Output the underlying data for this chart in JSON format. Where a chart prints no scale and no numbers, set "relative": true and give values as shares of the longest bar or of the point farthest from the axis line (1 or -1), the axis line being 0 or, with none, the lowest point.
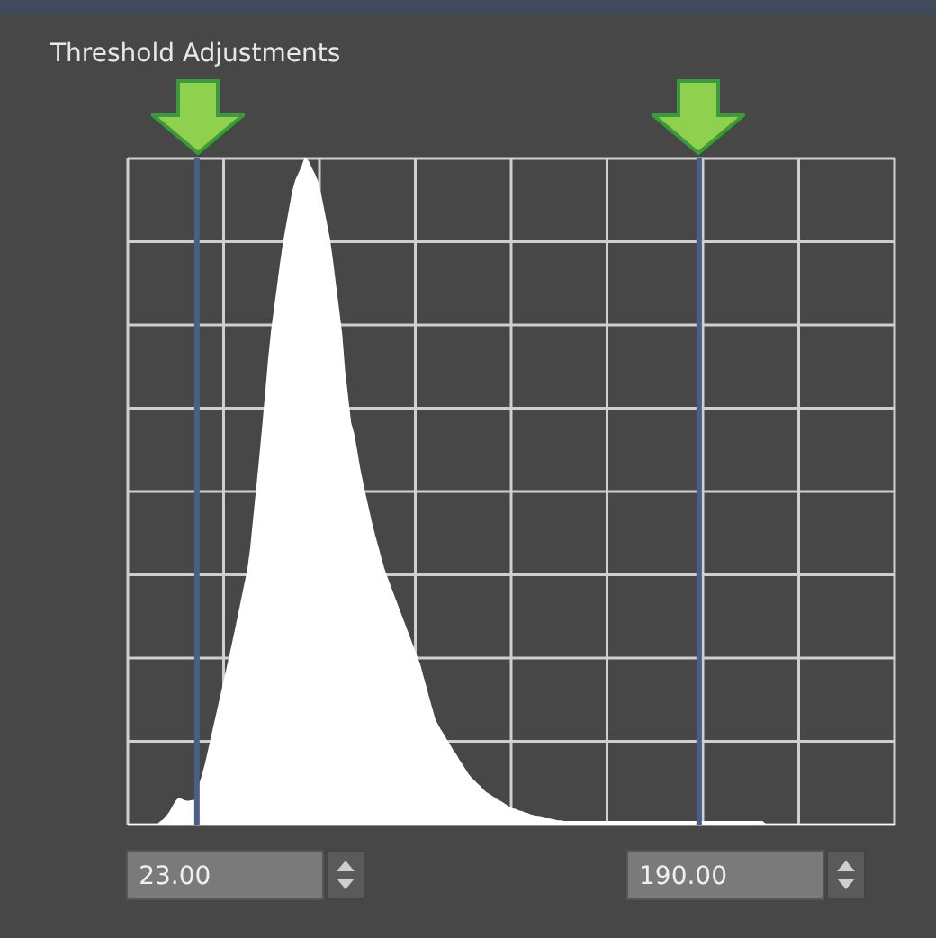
{
  "chart_data": {
    "type": "area",
    "title": "Threshold Adjustments",
    "relative": true,
    "grid": true,
    "categories": [
      null,
      null,
      null,
      null,
      null,
      null,
      null,
      null,
      null,
      null,
      null,
      null,
      null,
      null,
      null,
      null,
      null,
      null,
      null,
      null,
      null,
      null,
      null,
      null,
      null,
      null,
      null,
      null,
      null,
      null,
      null,
      null,
      null,
      null,
      null,
      null,
      null,
      null,
      null,
      null,
      null,
      null,
      null,
      null,
      null,
      null,
      null,
      null,
      null,
      null,
      null,
      null,
      null,
      null,
      null,
      null,
      null,
      null,
      null,
      null,
      null,
      null,
      null,
      null,
      null,
      null,
      null,
      null,
      null,
      null,
      null,
      null,
      null,
      null,
      null,
      null,
      null,
      null,
      null,
      null,
      null,
      null,
      null,
      null,
      null,
      null,
      null,
      null,
      null,
      null,
      null,
      null,
      null,
      null,
      null,
      null,
      null,
      null,
      null,
      null,
      null,
      null,
      null,
      null,
      null,
      null,
      null,
      null,
      null,
      null,
      null,
      null,
      null,
      null,
      null,
      null,
      null,
      null,
      null,
      null,
      null,
      null,
      null,
      null,
      null,
      null,
      null,
      null,
      null,
      null,
      null,
      null,
      null,
      null,
      null,
      null,
      null,
      null,
      null,
      null,
      null,
      null,
      null,
      null,
      null,
      null,
      null,
      null,
      null,
      null,
      null,
      null,
      null,
      null,
      null,
      null,
      null,
      null,
      null,
      null,
      null,
      null,
      null,
      null,
      null,
      null,
      null,
      null,
      null,
      null,
      null,
      null,
      null,
      null,
      null,
      null,
      null,
      null,
      null,
      null,
      null,
      null,
      null,
      null,
      null,
      null,
      null,
      null,
      null,
      null,
      null,
      null,
      null,
      null,
      null,
      null,
      null,
      null,
      null,
      null,
      null,
      null,
      null,
      null,
      null,
      null,
      null,
      null,
      null,
      null,
      null,
      null,
      null,
      null,
      null,
      null,
      null,
      null,
      null,
      null,
      null,
      null,
      null,
      null,
      null,
      null,
      null,
      null,
      null,
      null,
      null,
      null,
      null,
      null,
      null,
      null,
      null,
      null,
      null,
      null,
      null,
      null,
      null,
      null,
      null,
      null,
      null,
      null,
      null,
      null,
      null,
      null,
      null,
      null,
      null,
      null
    ],
    "series": [
      {
        "color": "#ffffff",
        "values": [
          0,
          0,
          0,
          0,
          0,
          0,
          0,
          0,
          0,
          0,
          0,
          0.004,
          0.007,
          0.012,
          0.018,
          0.026,
          0.034,
          0.039,
          0.037,
          0.035,
          0.034,
          0.035,
          0.036,
          0.037,
          0.06,
          0.075,
          0.092,
          0.112,
          0.132,
          0.152,
          0.172,
          0.192,
          0.212,
          0.232,
          0.252,
          0.273,
          0.294,
          0.316,
          0.338,
          0.36,
          0.381,
          0.415,
          0.46,
          0.505,
          0.55,
          0.598,
          0.649,
          0.7,
          0.743,
          0.777,
          0.811,
          0.845,
          0.876,
          0.901,
          0.926,
          0.951,
          0.967,
          0.977,
          0.987,
          1,
          0.995,
          0.985,
          0.976,
          0.965,
          0.947,
          0.924,
          0.901,
          0.878,
          0.845,
          0.809,
          0.773,
          0.737,
          0.681,
          0.642,
          0.603,
          0.587,
          0.562,
          0.535,
          0.513,
          0.492,
          0.472,
          0.452,
          0.434,
          0.418,
          0.401,
          0.385,
          0.372,
          0.36,
          0.348,
          0.336,
          0.324,
          0.312,
          0.3,
          0.288,
          0.276,
          0.264,
          0.252,
          0.24,
          0.223,
          0.207,
          0.19,
          0.174,
          0.158,
          0.149,
          0.141,
          0.134,
          0.126,
          0.119,
          0.111,
          0.105,
          0.097,
          0.09,
          0.083,
          0.076,
          0.07,
          0.066,
          0.061,
          0.057,
          0.052,
          0.048,
          0.045,
          0.042,
          0.039,
          0.036,
          0.034,
          0.031,
          0.028,
          0.025,
          0.023,
          0.022,
          0.02,
          0.019,
          0.017,
          0.016,
          0.014,
          0.013,
          0.011,
          0.01,
          0.009,
          0.008,
          0.008,
          0.007,
          0.006,
          0.005,
          0.005,
          0.004,
          0.004,
          0.004,
          0.004,
          0.004,
          0.004,
          0.004,
          0.004,
          0.004,
          0.004,
          0.004,
          0.004,
          0.004,
          0.004,
          0.004,
          0.004,
          0.004,
          0.004,
          0.004,
          0.004,
          0.004,
          0.004,
          0.004,
          0.004,
          0.004,
          0.004,
          0.004,
          0.004,
          0.004,
          0.004,
          0.004,
          0.004,
          0.004,
          0.004,
          0.004,
          0.004,
          0.004,
          0.004,
          0.004,
          0.004,
          0.004,
          0.004,
          0.004,
          0.004,
          0.004,
          0.004,
          0.004,
          0.004,
          0.004,
          0.004,
          0.004,
          0.004,
          0.004,
          0.004,
          0.004,
          0.004,
          0.004,
          0.004,
          0.004,
          0.004,
          0.004,
          0.004,
          0.004,
          0.004,
          0.004,
          0.004,
          0.004,
          0,
          0,
          0,
          0,
          0,
          0,
          0,
          0,
          0,
          0,
          0,
          0,
          0,
          0,
          0,
          0,
          0,
          0,
          0,
          0,
          0,
          0,
          0,
          0,
          0,
          0,
          0,
          0,
          0,
          0,
          0,
          0,
          0,
          0,
          0,
          0,
          0,
          0,
          0,
          0,
          0,
          0,
          0,
          0
        ]
      }
    ],
    "annotations": [
      "23.00",
      "190.00"
    ]
  }
}
